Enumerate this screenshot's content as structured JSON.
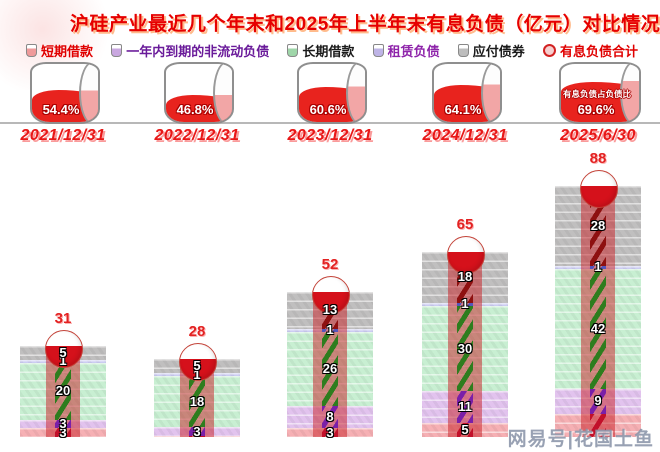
{
  "title": "沪硅产业最近几个年末和2025年上半年末有息负债（亿元）对比情况",
  "watermark": "网易号|花国土鱼",
  "colors": {
    "title_red": "#e60000",
    "date_red": "#e81717",
    "total_red": "#e32222",
    "gauge_liquid": "#e8231e",
    "gauge_rim_light": "#f2a6a6",
    "column_overlay": "rgba(200,30,35,0.5)"
  },
  "legend": [
    {
      "key": "short",
      "label": "短期借款",
      "text_color": "#e00000",
      "icon_color": "#ef9a9a"
    },
    {
      "key": "oneyear",
      "label": "一年内到期的非流动负债",
      "text_color": "#6a1b9a",
      "icon_color": "#c9a7e0"
    },
    {
      "key": "long",
      "label": "长期借款",
      "text_color": "#1a1a1a",
      "icon_color": "#9fd6a9"
    },
    {
      "key": "lease",
      "label": "租赁负债",
      "text_color": "#8e24aa",
      "icon_color": "#beb4e6"
    },
    {
      "key": "bond",
      "label": "应付债券",
      "text_color": "#1a1a1a",
      "icon_color": "#bdbdbd"
    },
    {
      "key": "total",
      "label": "有息负债合计",
      "text_color": "#e00000",
      "icon_color": "#d22222"
    }
  ],
  "palette": {
    "short": {
      "band": "#f6b0b4",
      "coil": "#c2102a"
    },
    "oneyear": {
      "band": "#e2c3ee",
      "coil": "#7a1fa8"
    },
    "long": {
      "band": "#c8efd2",
      "coil": "#2e7d1e"
    },
    "lease": {
      "band": "#ccccf2",
      "coil": "#5555bb"
    },
    "bond": {
      "band": "#c0bfbf",
      "coil": "#8e1010"
    }
  },
  "gauges": [
    {
      "date": "2021/12/31",
      "percent": "54.4%",
      "note": ""
    },
    {
      "date": "2022/12/31",
      "percent": "46.8%",
      "note": ""
    },
    {
      "date": "2023/12/31",
      "percent": "60.6%",
      "note": ""
    },
    {
      "date": "2024/12/31",
      "percent": "64.1%",
      "note": ""
    },
    {
      "date": "2025/6/30",
      "percent": "69.6%",
      "note": "有息负债占负债比"
    }
  ],
  "bars": [
    {
      "date": "2021/12/31",
      "total": "31",
      "segments": [
        {
          "key": "short",
          "value": 3,
          "label": "3"
        },
        {
          "key": "oneyear",
          "value": 3,
          "label": "3"
        },
        {
          "key": "long",
          "value": 20,
          "label": "20"
        },
        {
          "key": "lease",
          "value": 1,
          "label": "1"
        },
        {
          "key": "bond",
          "value": 5,
          "label": "5"
        }
      ]
    },
    {
      "date": "2022/12/31",
      "total": "28",
      "segments": [
        {
          "key": "short",
          "value": 0.4,
          "label": ""
        },
        {
          "key": "oneyear",
          "value": 3,
          "label": "3"
        },
        {
          "key": "long",
          "value": 18,
          "label": "18"
        },
        {
          "key": "lease",
          "value": 1,
          "label": "1"
        },
        {
          "key": "bond",
          "value": 5,
          "label": "5"
        }
      ]
    },
    {
      "date": "2023/12/31",
      "total": "52",
      "segments": [
        {
          "key": "short",
          "value": 3,
          "label": "3"
        },
        {
          "key": "oneyear",
          "value": 8,
          "label": "8"
        },
        {
          "key": "long",
          "value": 26,
          "label": "26"
        },
        {
          "key": "lease",
          "value": 1,
          "label": "1"
        },
        {
          "key": "bond",
          "value": 13,
          "label": "13"
        }
      ]
    },
    {
      "date": "2024/12/31",
      "total": "65",
      "segments": [
        {
          "key": "short",
          "value": 5,
          "label": "5"
        },
        {
          "key": "oneyear",
          "value": 11,
          "label": "11"
        },
        {
          "key": "long",
          "value": 30,
          "label": "30"
        },
        {
          "key": "lease",
          "value": 1,
          "label": "1"
        },
        {
          "key": "bond",
          "value": 18,
          "label": "18"
        }
      ]
    },
    {
      "date": "2025/6/30",
      "total": "88",
      "segments": [
        {
          "key": "short",
          "value": 8,
          "label": ""
        },
        {
          "key": "oneyear",
          "value": 9,
          "label": "9"
        },
        {
          "key": "long",
          "value": 42,
          "label": "42"
        },
        {
          "key": "lease",
          "value": 1,
          "label": "1"
        },
        {
          "key": "bond",
          "value": 28,
          "label": "28"
        }
      ]
    }
  ],
  "chart_data": {
    "type": "bar",
    "stacked": true,
    "title": "沪硅产业最近几个年末和2025年上半年末有息负债（亿元）对比情况",
    "unit": "亿元",
    "categories": [
      "2021/12/31",
      "2022/12/31",
      "2023/12/31",
      "2024/12/31",
      "2025/6/30"
    ],
    "series": [
      {
        "name": "短期借款",
        "values": [
          3,
          0.4,
          3,
          5,
          8
        ]
      },
      {
        "name": "一年内到期的非流动负债",
        "values": [
          3,
          3,
          8,
          11,
          9
        ]
      },
      {
        "name": "长期借款",
        "values": [
          20,
          18,
          26,
          30,
          42
        ]
      },
      {
        "name": "租赁负债",
        "values": [
          1,
          1,
          1,
          1,
          1
        ]
      },
      {
        "name": "应付债券",
        "values": [
          5,
          5,
          13,
          18,
          28
        ]
      }
    ],
    "totals": [
      31,
      28,
      52,
      65,
      88
    ],
    "secondary_metric": {
      "name": "有息负债占负债比",
      "values_pct": [
        54.4,
        46.8,
        60.6,
        64.1,
        69.6
      ]
    },
    "legend_position": "top",
    "grid": "horizontal-stripes-in-bars"
  }
}
